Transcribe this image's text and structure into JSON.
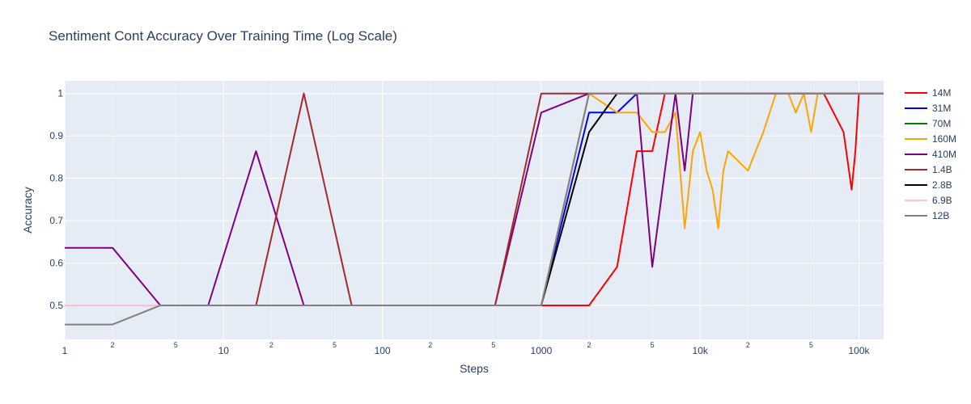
{
  "chart_data": {
    "type": "line",
    "title": "Sentiment Cont Accuracy Over Training Time (Log Scale)",
    "xlabel": "Steps",
    "ylabel": "Accuracy",
    "x_scale": "log",
    "xlim": [
      1,
      143000
    ],
    "ylim": [
      0.42,
      1.03
    ],
    "grid": true,
    "legend_position": "right",
    "x_tick_labels": [
      "1",
      "10",
      "100",
      "1000",
      "10k",
      "100k"
    ],
    "x_minor_tick_labels": [
      "2",
      "5"
    ],
    "y_tick_labels": [
      "0.5",
      "0.6",
      "0.7",
      "0.8",
      "0.9",
      "1"
    ],
    "series": [
      {
        "name": "14M",
        "color": "#ff0000",
        "x": [
          1,
          2,
          4,
          8,
          16,
          32,
          64,
          128,
          256,
          512,
          1000,
          2000,
          3000,
          4000,
          5000,
          6000,
          7000,
          8000,
          9000,
          10000,
          20000,
          40000,
          60000,
          80000,
          90000,
          95000,
          100000,
          143000
        ],
        "y": [
          0.5,
          0.5,
          0.5,
          0.5,
          0.5,
          0.5,
          0.5,
          0.5,
          0.5,
          0.5,
          0.5,
          0.5,
          0.591,
          0.864,
          0.864,
          1,
          1,
          1,
          1,
          1,
          1,
          1,
          1,
          0.909,
          0.773,
          0.864,
          1,
          1
        ]
      },
      {
        "name": "31M",
        "color": "#0000ff",
        "x": [
          1,
          2,
          4,
          8,
          16,
          32,
          64,
          128,
          256,
          512,
          1000,
          2000,
          3000,
          4000,
          5000,
          143000
        ],
        "y": [
          0.5,
          0.5,
          0.5,
          0.5,
          0.5,
          0.5,
          0.5,
          0.5,
          0.5,
          0.5,
          0.5,
          0.955,
          0.955,
          1,
          1,
          1
        ]
      },
      {
        "name": "70M",
        "color": "#008000",
        "x": [
          1,
          2,
          4,
          8,
          16,
          32,
          64,
          128,
          256,
          512,
          1000,
          2000,
          143000
        ],
        "y": [
          0.5,
          0.5,
          0.5,
          0.5,
          0.5,
          0.5,
          0.5,
          0.5,
          0.5,
          0.5,
          0.5,
          1,
          1
        ]
      },
      {
        "name": "160M",
        "color": "#ffa500",
        "x": [
          1,
          2,
          4,
          8,
          16,
          32,
          64,
          128,
          256,
          512,
          1000,
          2000,
          3000,
          4000,
          5000,
          6000,
          7000,
          8000,
          9000,
          10000,
          11000,
          12000,
          13000,
          14000,
          15000,
          20000,
          25000,
          30000,
          33000,
          36000,
          40000,
          45000,
          50000,
          55000,
          143000
        ],
        "y": [
          0.5,
          0.5,
          0.5,
          0.5,
          0.5,
          0.5,
          0.5,
          0.5,
          0.5,
          0.5,
          0.5,
          1,
          0.955,
          0.955,
          0.909,
          0.909,
          0.955,
          0.682,
          0.864,
          0.909,
          0.818,
          0.773,
          0.682,
          0.818,
          0.864,
          0.818,
          0.909,
          1,
          1,
          1,
          0.955,
          1,
          0.909,
          1,
          1
        ]
      },
      {
        "name": "410M",
        "color": "#800080",
        "x": [
          1,
          2,
          4,
          8,
          16,
          32,
          64,
          128,
          256,
          512,
          1000,
          2000,
          3000,
          4000,
          5000,
          6000,
          7000,
          8000,
          9000,
          143000
        ],
        "y": [
          0.636,
          0.636,
          0.5,
          0.5,
          0.864,
          0.5,
          0.5,
          0.5,
          0.5,
          0.5,
          0.955,
          1,
          1,
          1,
          0.591,
          0.818,
          1,
          0.818,
          1,
          1
        ]
      },
      {
        "name": "1.4B",
        "color": "#a52a2a",
        "x": [
          1,
          2,
          4,
          8,
          16,
          32,
          64,
          128,
          256,
          512,
          1000,
          2000,
          143000
        ],
        "y": [
          0.5,
          0.5,
          0.5,
          0.5,
          0.5,
          1,
          0.5,
          0.5,
          0.5,
          0.5,
          1,
          1,
          1
        ]
      },
      {
        "name": "2.8B",
        "color": "#000000",
        "x": [
          1,
          2,
          4,
          8,
          16,
          32,
          64,
          128,
          256,
          512,
          1000,
          2000,
          3000,
          143000
        ],
        "y": [
          0.5,
          0.5,
          0.5,
          0.5,
          0.5,
          0.5,
          0.5,
          0.5,
          0.5,
          0.5,
          0.5,
          0.909,
          1,
          1
        ]
      },
      {
        "name": "6.9B",
        "color": "#ffc0cb",
        "x": [
          1,
          2,
          4,
          8,
          16,
          32,
          64,
          128,
          256,
          512,
          1000,
          2000,
          143000
        ],
        "y": [
          0.5,
          0.5,
          0.5,
          0.5,
          0.5,
          0.5,
          0.5,
          0.5,
          0.5,
          0.5,
          0.5,
          1,
          1
        ]
      },
      {
        "name": "12B",
        "color": "#808080",
        "x": [
          1,
          2,
          4,
          8,
          16,
          32,
          64,
          128,
          256,
          512,
          1000,
          2000,
          143000
        ],
        "y": [
          0.455,
          0.455,
          0.5,
          0.5,
          0.5,
          0.5,
          0.5,
          0.5,
          0.5,
          0.5,
          0.5,
          1,
          1
        ]
      }
    ]
  }
}
